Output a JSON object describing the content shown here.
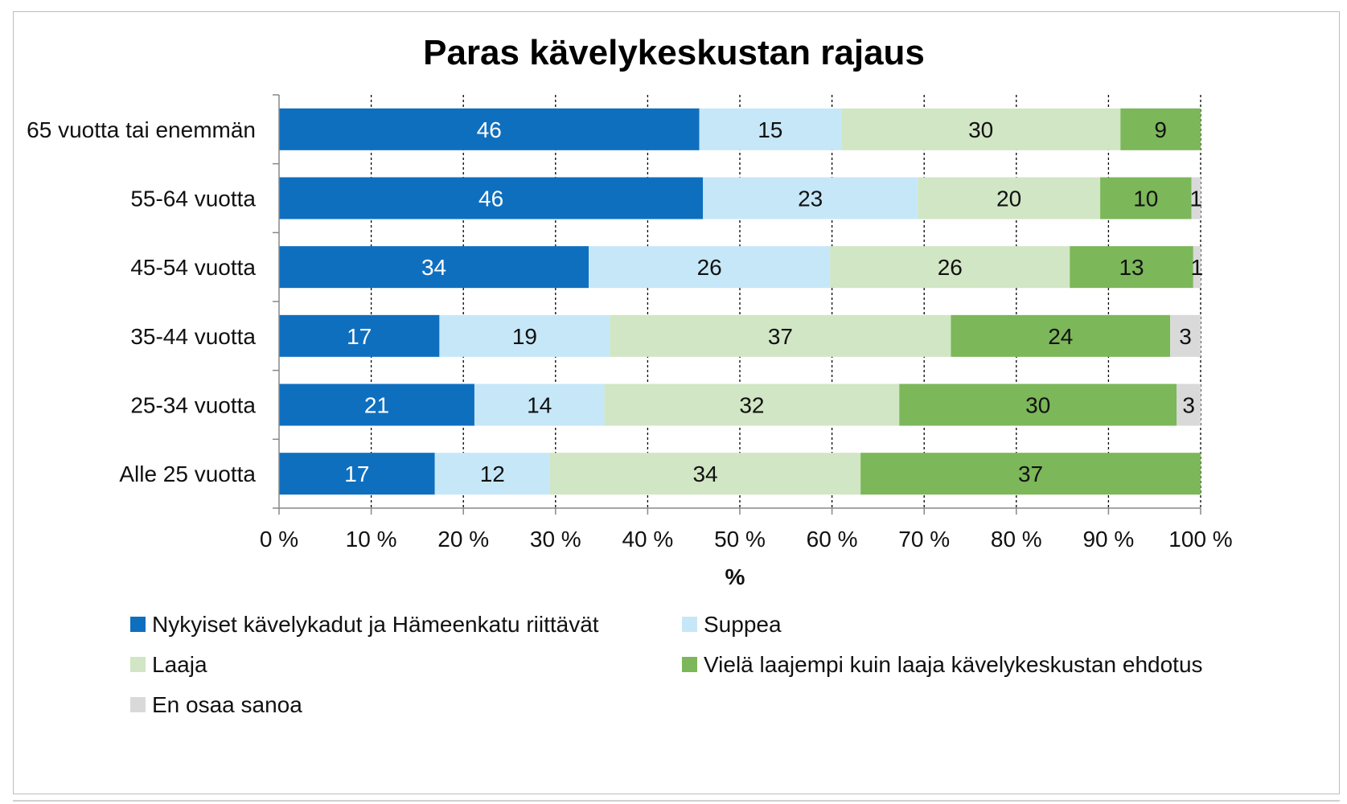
{
  "chart_data": {
    "type": "bar",
    "orientation": "horizontal",
    "stacked": true,
    "title": "Paras kävelykeskustan rajaus",
    "xlabel": "%",
    "ylabel": "",
    "xlim": [
      0,
      100
    ],
    "x_ticks": [
      "0 %",
      "10 %",
      "20 %",
      "30 %",
      "40 %",
      "50 %",
      "60 %",
      "70 %",
      "80 %",
      "90 %",
      "100 %"
    ],
    "grid": true,
    "legend_position": "bottom",
    "categories": [
      "65 vuotta tai enemmän",
      "55-64 vuotta",
      "45-54 vuotta",
      "35-44 vuotta",
      "25-34 vuotta",
      "Alle 25 vuotta"
    ],
    "series": [
      {
        "name": "Nykyiset kävelykadut ja Hämeenkatu riittävät",
        "color": "#0f6fbf",
        "label_color": "#ffffff",
        "values": [
          45.6,
          46.0,
          33.6,
          17.4,
          21.2,
          16.9
        ],
        "labels": [
          "46",
          "46",
          "34",
          "17",
          "21",
          "17"
        ]
      },
      {
        "name": "Suppea",
        "color": "#c6e7f8",
        "label_color": "#111111",
        "values": [
          15.4,
          23.3,
          26.2,
          18.5,
          14.1,
          12.5
        ],
        "labels": [
          "15",
          "23",
          "26",
          "19",
          "14",
          "12"
        ]
      },
      {
        "name": "Laaja",
        "color": "#d1e6c4",
        "label_color": "#111111",
        "values": [
          30.3,
          19.8,
          26.0,
          37.0,
          32.0,
          33.7
        ],
        "labels": [
          "30",
          "20",
          "26",
          "37",
          "32",
          "34"
        ]
      },
      {
        "name": "Vielä laajempi kuin laaja kävelykeskustan ehdotus",
        "color": "#7cb75a",
        "label_color": "#111111",
        "values": [
          8.7,
          9.9,
          13.4,
          23.8,
          30.1,
          36.9
        ],
        "labels": [
          "9",
          "10",
          "13",
          "24",
          "30",
          "37"
        ]
      },
      {
        "name": "En osaa sanoa",
        "color": "#d9d9d9",
        "label_color": "#111111",
        "values": [
          0,
          1.0,
          0.8,
          3.3,
          2.6,
          0
        ],
        "labels": [
          "",
          "1",
          "1",
          "3",
          "3",
          ""
        ]
      }
    ]
  }
}
